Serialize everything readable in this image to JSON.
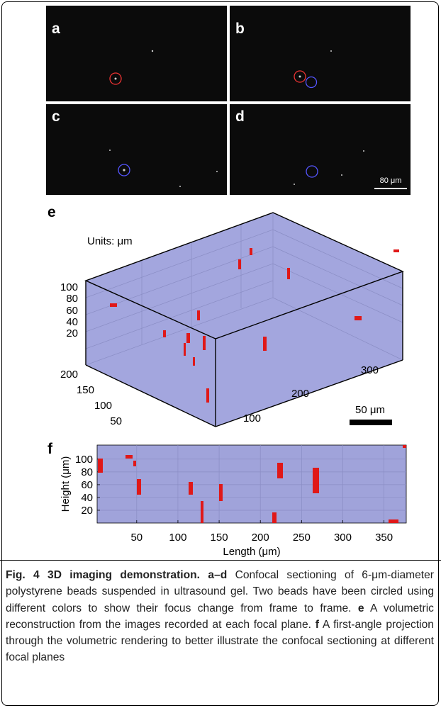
{
  "figure": {
    "panels": {
      "a": "a",
      "b": "b",
      "c": "c",
      "d": "d",
      "e": "e",
      "f": "f"
    },
    "scale_bar_d": "80 μm",
    "panel_e": {
      "units": "Units: μm",
      "z_ticks": [
        100,
        80,
        60,
        40,
        20
      ],
      "y_ticks": [
        200,
        150,
        100,
        50
      ],
      "x_ticks": [
        100,
        200,
        300
      ],
      "scale_bar": "50 μm"
    },
    "panel_f": {
      "xlabel": "Length (μm)",
      "ylabel": "Height (μm)",
      "xlim": [
        2,
        377
      ],
      "ylim": [
        0,
        122
      ],
      "xticks": [
        50,
        100,
        150,
        200,
        250,
        300,
        350
      ],
      "yticks": [
        20,
        40,
        60,
        80,
        100
      ]
    },
    "caption": {
      "title": "Fig. 4 3D imaging demonstration.",
      "parts": [
        {
          "label": "a–d",
          "text": "Confocal sectioning of 6-μm-diameter polystyrene beads suspended in ultrasound gel. Two beads have been circled using different colors to show their focus change from frame to frame."
        },
        {
          "label": "e",
          "text": "A volumetric reconstruction from the images recorded at each focal plane."
        },
        {
          "label": "f",
          "text": "A first-angle projection through the volumetric rendering to better illustrate the confocal sectioning at different focal planes"
        }
      ]
    }
  }
}
